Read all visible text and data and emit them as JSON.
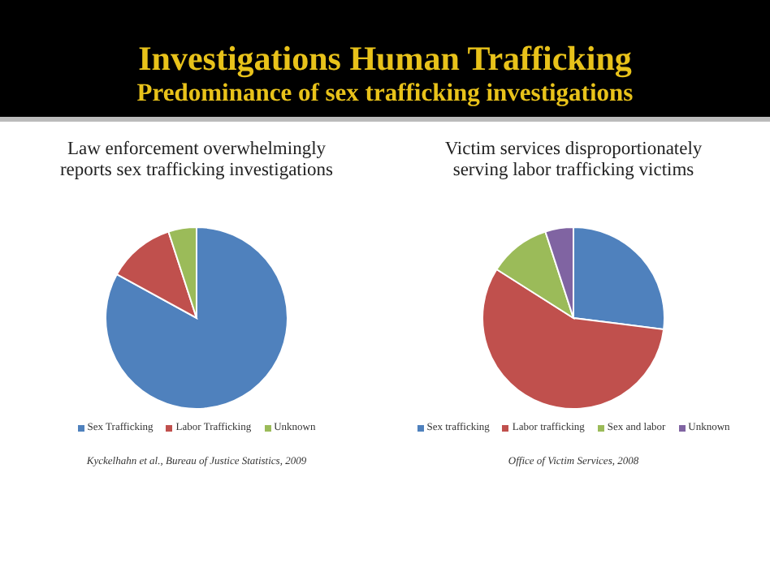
{
  "chart_data": [
    {
      "type": "other",
      "title": "Investigations Human Trafficking",
      "subtitle": "Predominance of sex trafficking investigations"
    },
    {
      "type": "pie",
      "title": "Law enforcement overwhelmingly reports sex trafficking investigations",
      "categories": [
        "Sex Trafficking",
        "Labor Trafficking",
        "Unknown"
      ],
      "values": [
        83,
        12,
        5
      ],
      "colors": [
        "#4f81bd",
        "#c0504d",
        "#9bbb59"
      ],
      "legend": "bottom",
      "annotations": [
        "Kyckelhahn et al., Bureau of Justice Statistics, 2009"
      ]
    },
    {
      "type": "pie",
      "title": "Victim services disproportionately serving labor trafficking victims",
      "categories": [
        "Sex trafficking",
        "Labor trafficking",
        "Sex  and labor",
        "Unknown"
      ],
      "values": [
        27,
        57,
        11,
        5
      ],
      "colors": [
        "#4f81bd",
        "#c0504d",
        "#9bbb59",
        "#8064a2"
      ],
      "legend": "bottom",
      "annotations": [
        "Office of Victim Services, 2008"
      ]
    }
  ]
}
